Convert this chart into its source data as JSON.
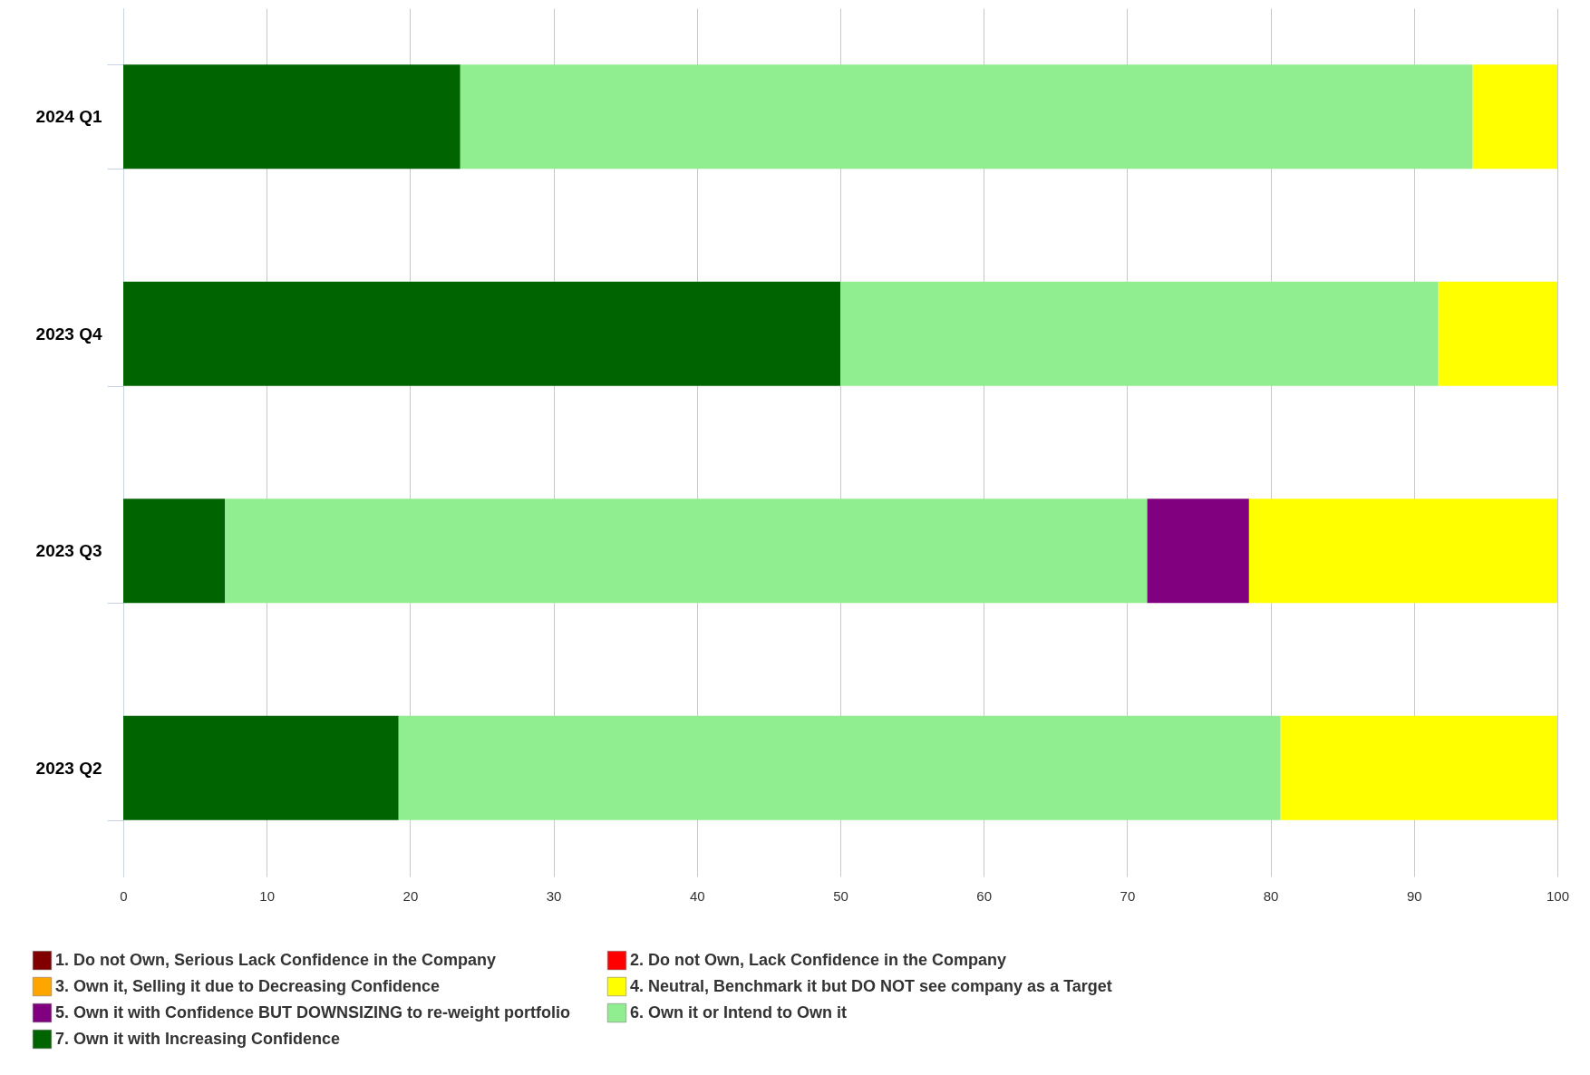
{
  "chart_data": {
    "type": "bar",
    "orientation": "horizontal",
    "stacked": true,
    "categories": [
      "2024 Q1",
      "2023 Q4",
      "2023 Q3",
      "2023 Q2"
    ],
    "series": [
      {
        "name": "7. Own it with Increasing Confidence",
        "color": "#006400",
        "values": [
          23.5,
          50.0,
          7.1,
          19.2
        ]
      },
      {
        "name": "6. Own it or Intend to Own it",
        "color": "#90ee90",
        "values": [
          70.6,
          41.7,
          64.3,
          61.5
        ]
      },
      {
        "name": "5. Own it with Confidence BUT DOWNSIZING to re-weight portfolio",
        "color": "#800080",
        "values": [
          0,
          0,
          7.1,
          0
        ]
      },
      {
        "name": "4. Neutral, Benchmark it but DO NOT see company as a Target",
        "color": "#ffff00",
        "values": [
          5.9,
          8.3,
          21.5,
          19.3
        ]
      },
      {
        "name": "3. Own it, Selling it due to Decreasing Confidence",
        "color": "#ffa500",
        "values": [
          0,
          0,
          0,
          0
        ]
      },
      {
        "name": "2. Do not Own, Lack Confidence in the Company",
        "color": "#ff0000",
        "values": [
          0,
          0,
          0,
          0
        ]
      },
      {
        "name": "1. Do not Own, Serious Lack Confidence in the Company",
        "color": "#800000",
        "values": [
          0,
          0,
          0,
          0
        ]
      }
    ],
    "xlim": [
      0,
      100
    ],
    "xticks": [
      0,
      10,
      20,
      30,
      40,
      50,
      60,
      70,
      80,
      90,
      100
    ],
    "grid": "x",
    "legend": "bottom left"
  }
}
